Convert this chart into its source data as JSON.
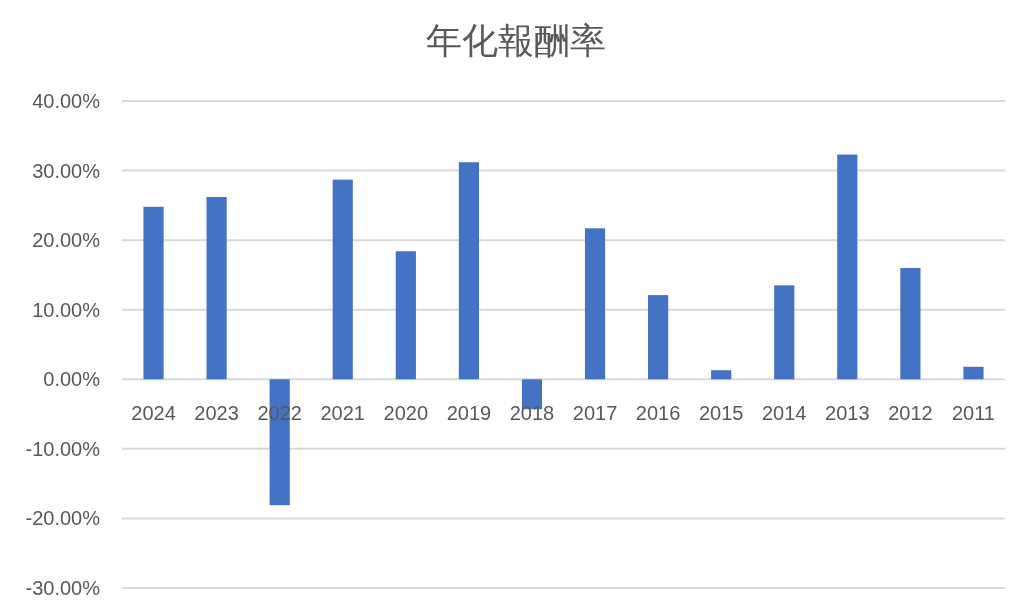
{
  "chart_data": {
    "type": "bar",
    "title": "年化報酬率",
    "categories": [
      "2024",
      "2023",
      "2022",
      "2021",
      "2020",
      "2019",
      "2018",
      "2017",
      "2016",
      "2015",
      "2014",
      "2013",
      "2012",
      "2011"
    ],
    "values": [
      24.8,
      26.2,
      -18.1,
      28.7,
      18.4,
      31.2,
      -4.3,
      21.7,
      12.1,
      1.3,
      13.5,
      32.3,
      16.0,
      1.8
    ],
    "color": "#4472c4",
    "ylim": [
      -30,
      40
    ],
    "yticks": [
      {
        "value": -30,
        "label": "-30.00%"
      },
      {
        "value": -20,
        "label": "-20.00%"
      },
      {
        "value": -10,
        "label": "-10.00%"
      },
      {
        "value": 0,
        "label": "0.00%"
      },
      {
        "value": 10,
        "label": "10.00%"
      },
      {
        "value": 20,
        "label": "20.00%"
      },
      {
        "value": 30,
        "label": "30.00%"
      },
      {
        "value": 40,
        "label": "40.00%"
      }
    ],
    "grid": "y"
  }
}
